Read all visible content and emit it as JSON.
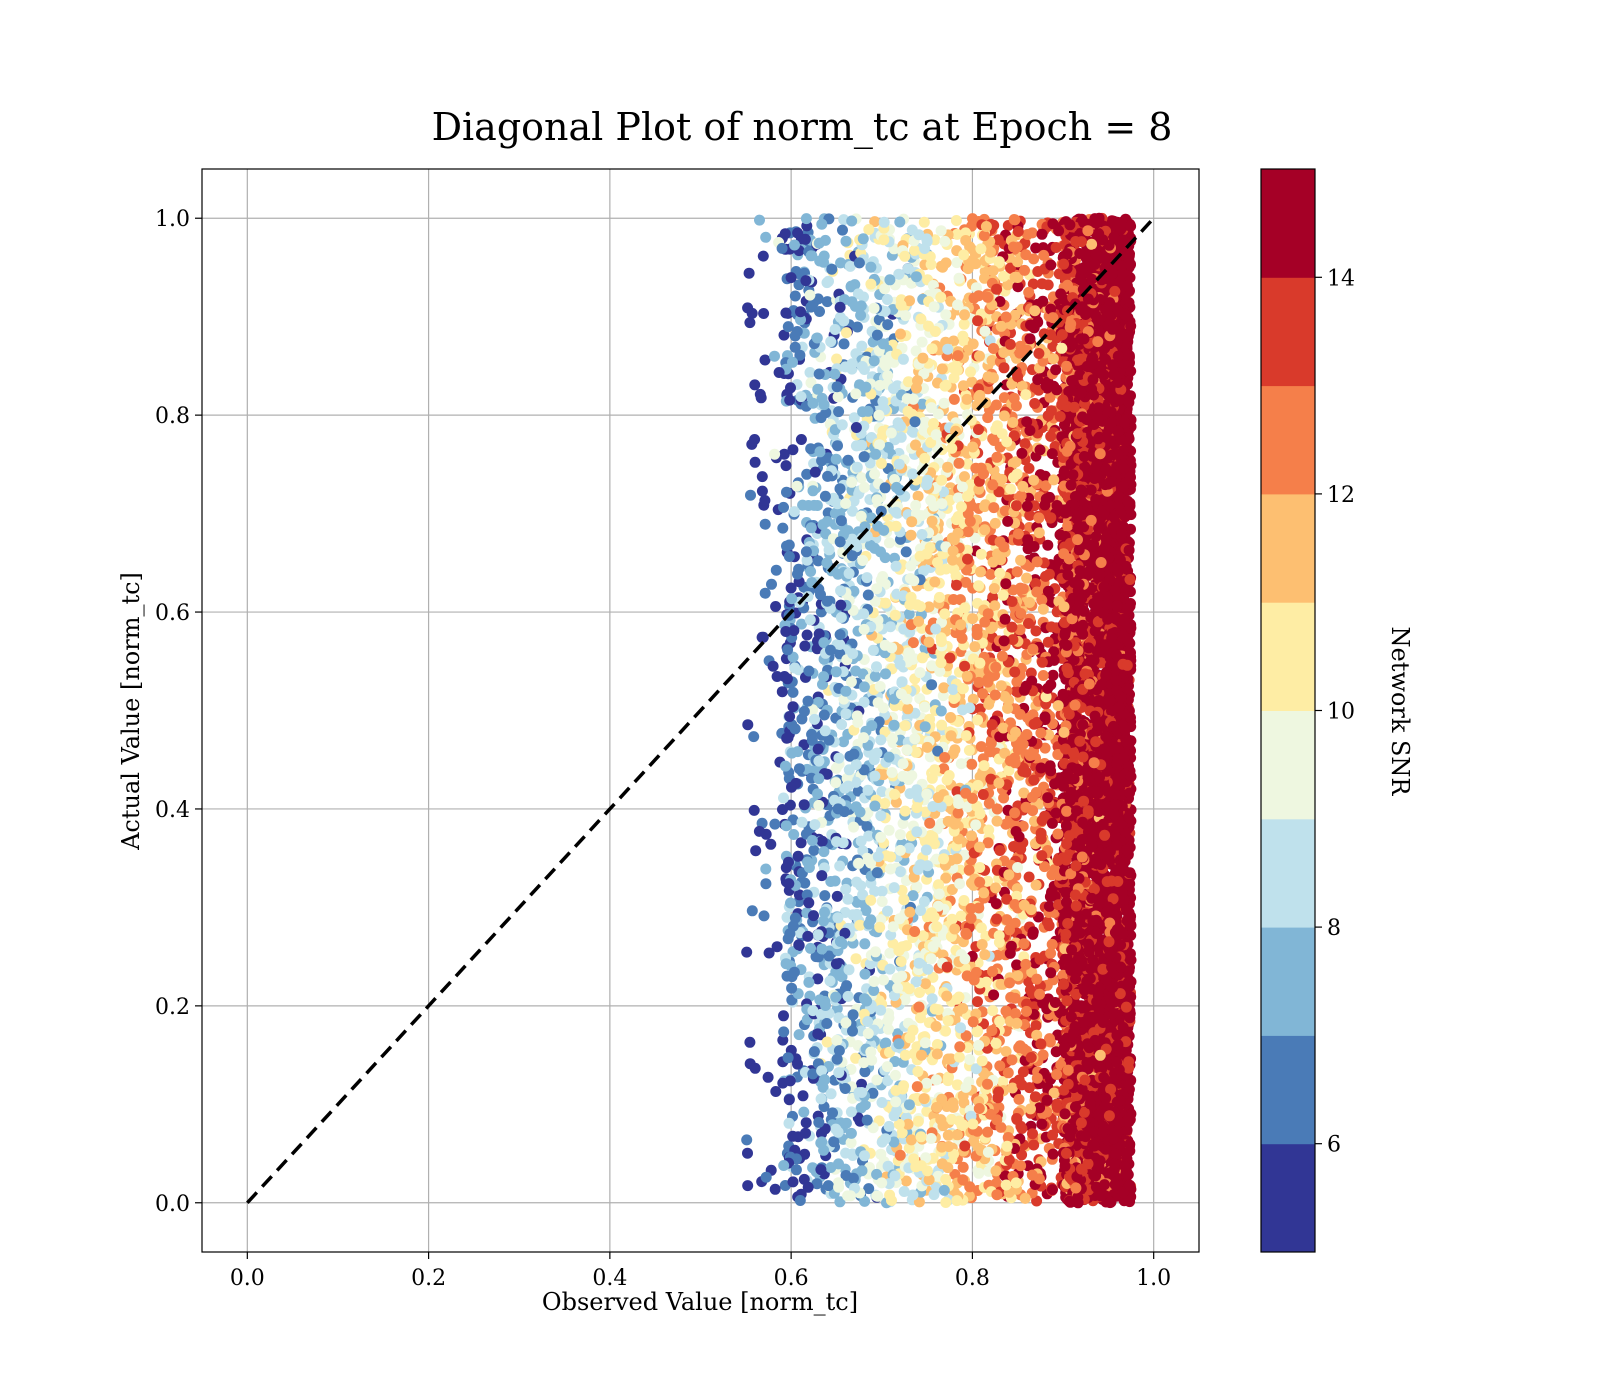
{
  "chart_data": {
    "type": "scatter",
    "title": "Diagonal Plot of norm_tc at Epoch = 8",
    "xlabel": "Observed Value [norm_tc]",
    "ylabel": "Actual Value [norm_tc]",
    "xlim": [
      -0.05,
      1.05
    ],
    "ylim": [
      -0.05,
      1.05
    ],
    "x_ticks": [
      "0.0",
      "0.2",
      "0.4",
      "0.6",
      "0.8",
      "1.0"
    ],
    "y_ticks": [
      "0.0",
      "0.2",
      "0.4",
      "0.6",
      "0.8",
      "1.0"
    ],
    "grid": true,
    "reference_line": {
      "style": "dashed",
      "color": "#000000",
      "from": [
        0,
        0
      ],
      "to": [
        1,
        1
      ]
    },
    "point_distribution": {
      "x_range": [
        0.55,
        0.98
      ],
      "y_range": [
        0.0,
        1.0
      ],
      "color_trend": "Network SNR increases with observed value; low-SNR blue points near x = 0.6, high-SNR dark red points densely packed near x = 0.9 to 0.98"
    },
    "colorbar": {
      "label": "Network SNR",
      "range": [
        5,
        15
      ],
      "ticks": [
        "6",
        "8",
        "10",
        "12",
        "14"
      ],
      "bins": [
        {
          "from": 5,
          "to": 6,
          "color": "#313695"
        },
        {
          "from": 6,
          "to": 7,
          "color": "#4a7bb7"
        },
        {
          "from": 7,
          "to": 8,
          "color": "#81b6d6"
        },
        {
          "from": 8,
          "to": 9,
          "color": "#bfe1ec"
        },
        {
          "from": 9,
          "to": 10,
          "color": "#eef7e0"
        },
        {
          "from": 10,
          "to": 11,
          "color": "#feeda4"
        },
        {
          "from": 11,
          "to": 12,
          "color": "#fdbf71"
        },
        {
          "from": 12,
          "to": 13,
          "color": "#f57f4a"
        },
        {
          "from": 13,
          "to": 14,
          "color": "#d93a2b"
        },
        {
          "from": 14,
          "to": 15,
          "color": "#a50026"
        }
      ]
    }
  }
}
